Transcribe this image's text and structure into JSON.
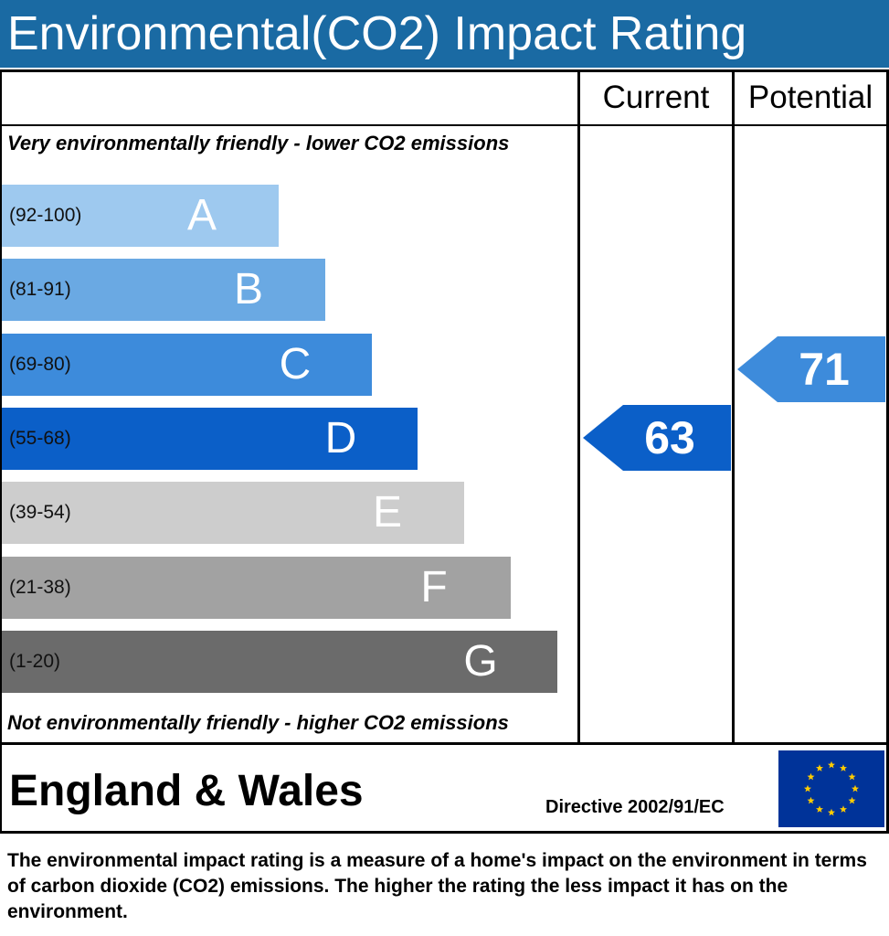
{
  "header": {
    "title": "Environmental(CO2) Impact Rating"
  },
  "columns": {
    "current": "Current",
    "potential": "Potential"
  },
  "captions": {
    "top": "Very environmentally friendly - lower CO2 emissions",
    "bottom": "Not environmentally friendly - higher CO2 emissions"
  },
  "chart_data": {
    "type": "bar",
    "title": "Environmental(CO2) Impact Rating",
    "categories": [
      "A",
      "B",
      "C",
      "D",
      "E",
      "F",
      "G"
    ],
    "bands": [
      {
        "letter": "A",
        "range": "(92-100)",
        "min": 92,
        "max": 100,
        "color": "#9ec9ef"
      },
      {
        "letter": "B",
        "range": "(81-91)",
        "min": 81,
        "max": 91,
        "color": "#6aa9e3"
      },
      {
        "letter": "C",
        "range": "(69-80)",
        "min": 69,
        "max": 80,
        "color": "#3d8bdb"
      },
      {
        "letter": "D",
        "range": "(55-68)",
        "min": 55,
        "max": 68,
        "color": "#0b5fc8"
      },
      {
        "letter": "E",
        "range": "(39-54)",
        "min": 39,
        "max": 54,
        "color": "#cdcdcd"
      },
      {
        "letter": "F",
        "range": "(21-38)",
        "min": 21,
        "max": 38,
        "color": "#a2a2a2"
      },
      {
        "letter": "G",
        "range": "(1-20)",
        "min": 1,
        "max": 20,
        "color": "#6b6b6b"
      }
    ],
    "current": {
      "value": 63,
      "label": "63",
      "band": "D",
      "color": "#0b5fc8"
    },
    "potential": {
      "value": 71,
      "label": "71",
      "band": "C",
      "color": "#3d8bdb"
    }
  },
  "footer": {
    "region": "England & Wales",
    "directive": "Directive 2002/91/EC",
    "flag_icon": "eu-flag-icon",
    "description": "The environmental impact rating is a measure of a home's impact on the environment in terms of carbon dioxide (CO2) emissions. The higher the rating the less impact it has on the environment."
  }
}
